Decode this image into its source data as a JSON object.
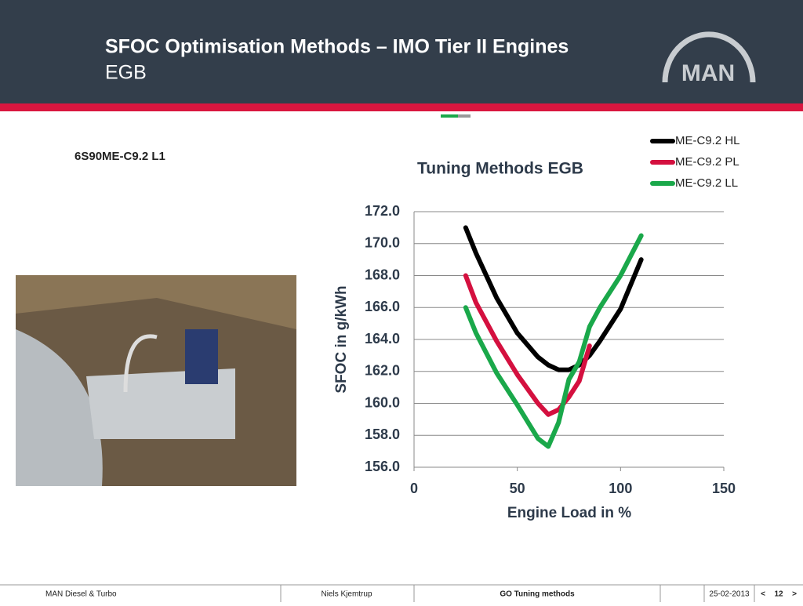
{
  "header": {
    "title": "SFOC Optimisation Methods – IMO Tier II Engines",
    "subtitle": "EGB",
    "logo": "MAN"
  },
  "engine_label": "6S90ME-C9.2 L1",
  "chart_data": {
    "type": "line",
    "title": "Tuning Methods EGB",
    "x_label": "Engine Load in %",
    "y_label": "SFOC in g/kWh",
    "x": [
      25,
      30,
      40,
      50,
      60,
      65,
      70,
      75,
      80,
      85,
      90,
      100,
      110
    ],
    "series": [
      {
        "name": "ME-C9.2 HL",
        "color": "#000000",
        "values": [
          171.0,
          169.4,
          166.6,
          164.4,
          162.9,
          162.4,
          162.1,
          162.1,
          162.4,
          163.0,
          163.9,
          165.9,
          169.0
        ]
      },
      {
        "name": "ME-C9.2 PL",
        "color": "#d4103f",
        "values": [
          168.0,
          166.3,
          163.9,
          161.8,
          160.0,
          159.3,
          159.6,
          160.4,
          161.4,
          163.6,
          null,
          null,
          null
        ]
      },
      {
        "name": "ME-C9.2 LL",
        "color": "#1aa84a",
        "values": [
          166.0,
          164.4,
          161.9,
          159.9,
          157.8,
          157.3,
          158.8,
          161.5,
          162.6,
          164.8,
          166.0,
          168.0,
          170.5
        ]
      }
    ],
    "xlim": [
      0,
      150
    ],
    "xticks": [
      0,
      50,
      100,
      150
    ],
    "ylim": [
      156,
      172
    ],
    "yticks": [
      {
        "value": 156,
        "label": "156.0"
      },
      {
        "value": 158,
        "label": "158.0"
      },
      {
        "value": 160,
        "label": "160.0"
      },
      {
        "value": 162,
        "label": "162.0"
      },
      {
        "value": 164,
        "label": "164.0"
      },
      {
        "value": 166,
        "label": "166.0"
      },
      {
        "value": 168,
        "label": "168.0"
      },
      {
        "value": 170,
        "label": "170.0"
      },
      {
        "value": 172,
        "label": "172.0"
      }
    ],
    "grid": true,
    "legend": "top-right"
  },
  "footer": {
    "company": "MAN Diesel & Turbo",
    "author": "Niels Kjemtrup",
    "topic": "GO Tuning methods",
    "date": "25-02-2013",
    "prev": "<",
    "page": "12",
    "next": ">"
  }
}
